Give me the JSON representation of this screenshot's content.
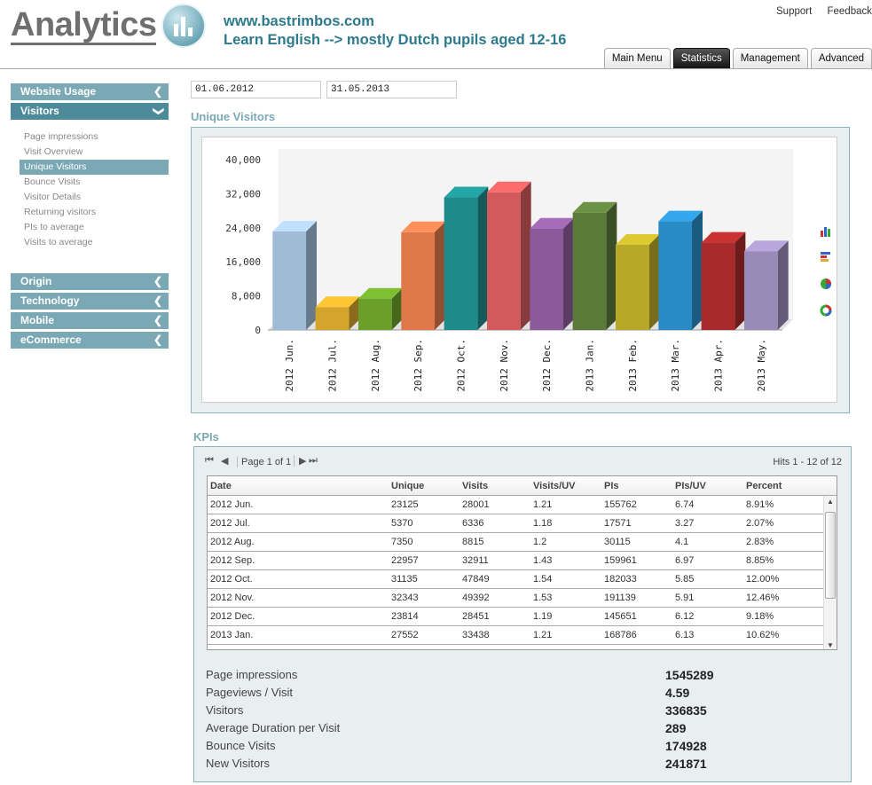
{
  "brand": {
    "name": "Analytics"
  },
  "site": {
    "url": "www.bastrimbos.com",
    "description": "Learn English --> mostly Dutch pupils aged 12-16"
  },
  "top_links": [
    "Support",
    "Feedback"
  ],
  "tabs": [
    {
      "label": "Main Menu",
      "active": false
    },
    {
      "label": "Statistics",
      "active": true
    },
    {
      "label": "Management",
      "active": false
    },
    {
      "label": "Advanced",
      "active": false
    }
  ],
  "sidebar": {
    "top": [
      {
        "label": "Website Usage",
        "open": false
      },
      {
        "label": "Visitors",
        "open": true
      }
    ],
    "subitems": [
      {
        "label": "Page impressions"
      },
      {
        "label": "Visit Overview"
      },
      {
        "label": "Unique Visitors",
        "selected": true
      },
      {
        "label": "Bounce Visits"
      },
      {
        "label": "Visitor Details"
      },
      {
        "label": "Returning visitors"
      },
      {
        "label": "PIs to average"
      },
      {
        "label": "Visits to average"
      }
    ],
    "bottom": [
      {
        "label": "Origin"
      },
      {
        "label": "Technology"
      },
      {
        "label": "Mobile"
      },
      {
        "label": "eCommerce"
      }
    ]
  },
  "dates": {
    "start": "01.06.2012",
    "end": "31.05.2013"
  },
  "chart_section": {
    "title": "Unique Visitors"
  },
  "chart_data": {
    "type": "bar",
    "title": "",
    "categories": [
      "2012 Jun.",
      "2012 Jul.",
      "2012 Aug.",
      "2012 Sep.",
      "2012 Oct.",
      "2012 Nov.",
      "2012 Dec.",
      "2013 Jan.",
      "2013 Feb.",
      "2013 Mar.",
      "2013 Apr.",
      "2013 May."
    ],
    "values": [
      23125,
      5370,
      7350,
      22957,
      31135,
      32343,
      23814,
      27552,
      20000,
      25500,
      20500,
      18500
    ],
    "ylim": [
      0,
      40000
    ],
    "yticks": [
      "40,000",
      "32,000",
      "24,000",
      "16,000",
      "8,000",
      "0"
    ],
    "colors": [
      "#9fbbd6",
      "#d4a52a",
      "#6aa02a",
      "#e0784a",
      "#1e8a8a",
      "#d25a5a",
      "#8a5a9a",
      "#5a7a3a",
      "#b8a82a",
      "#2a8ac6",
      "#a82a2a",
      "#9a8ab8"
    ]
  },
  "chart_tools": [
    {
      "icon": "bar-chart-icon"
    },
    {
      "icon": "horizontal-bar-icon"
    },
    {
      "icon": "pie-chart-icon"
    },
    {
      "icon": "donut-chart-icon"
    }
  ],
  "kpis": {
    "title": "KPIs",
    "page_label": "Page 1 of 1",
    "hits": "Hits 1 - 12 of 12",
    "columns": [
      "Date",
      "Unique",
      "Visits",
      "Visits/UV",
      "PIs",
      "PIs/UV",
      "Percent"
    ],
    "rows": [
      [
        "2012 Jun.",
        "23125",
        "28001",
        "1.21",
        "155762",
        "6.74",
        "8.91%"
      ],
      [
        "2012 Jul.",
        "5370",
        "6336",
        "1.18",
        "17571",
        "3.27",
        "2.07%"
      ],
      [
        "2012 Aug.",
        "7350",
        "8815",
        "1.2",
        "30115",
        "4.1",
        "2.83%"
      ],
      [
        "2012 Sep.",
        "22957",
        "32911",
        "1.43",
        "159961",
        "6.97",
        "8.85%"
      ],
      [
        "2012 Oct.",
        "31135",
        "47849",
        "1.54",
        "182033",
        "5.85",
        "12.00%"
      ],
      [
        "2012 Nov.",
        "32343",
        "49392",
        "1.53",
        "191139",
        "5.91",
        "12.46%"
      ],
      [
        "2012 Dec.",
        "23814",
        "28451",
        "1.19",
        "145651",
        "6.12",
        "9.18%"
      ],
      [
        "2013 Jan.",
        "27552",
        "33438",
        "1.21",
        "168786",
        "6.13",
        "10.62%"
      ]
    ],
    "summary": [
      {
        "label": "Page impressions",
        "value": "1545289"
      },
      {
        "label": "Pageviews / Visit",
        "value": "4.59"
      },
      {
        "label": "Visitors",
        "value": "336835"
      },
      {
        "label": "Average Duration per Visit",
        "value": "289"
      },
      {
        "label": "Bounce Visits",
        "value": "174928"
      },
      {
        "label": "New Visitors",
        "value": "241871"
      }
    ]
  }
}
